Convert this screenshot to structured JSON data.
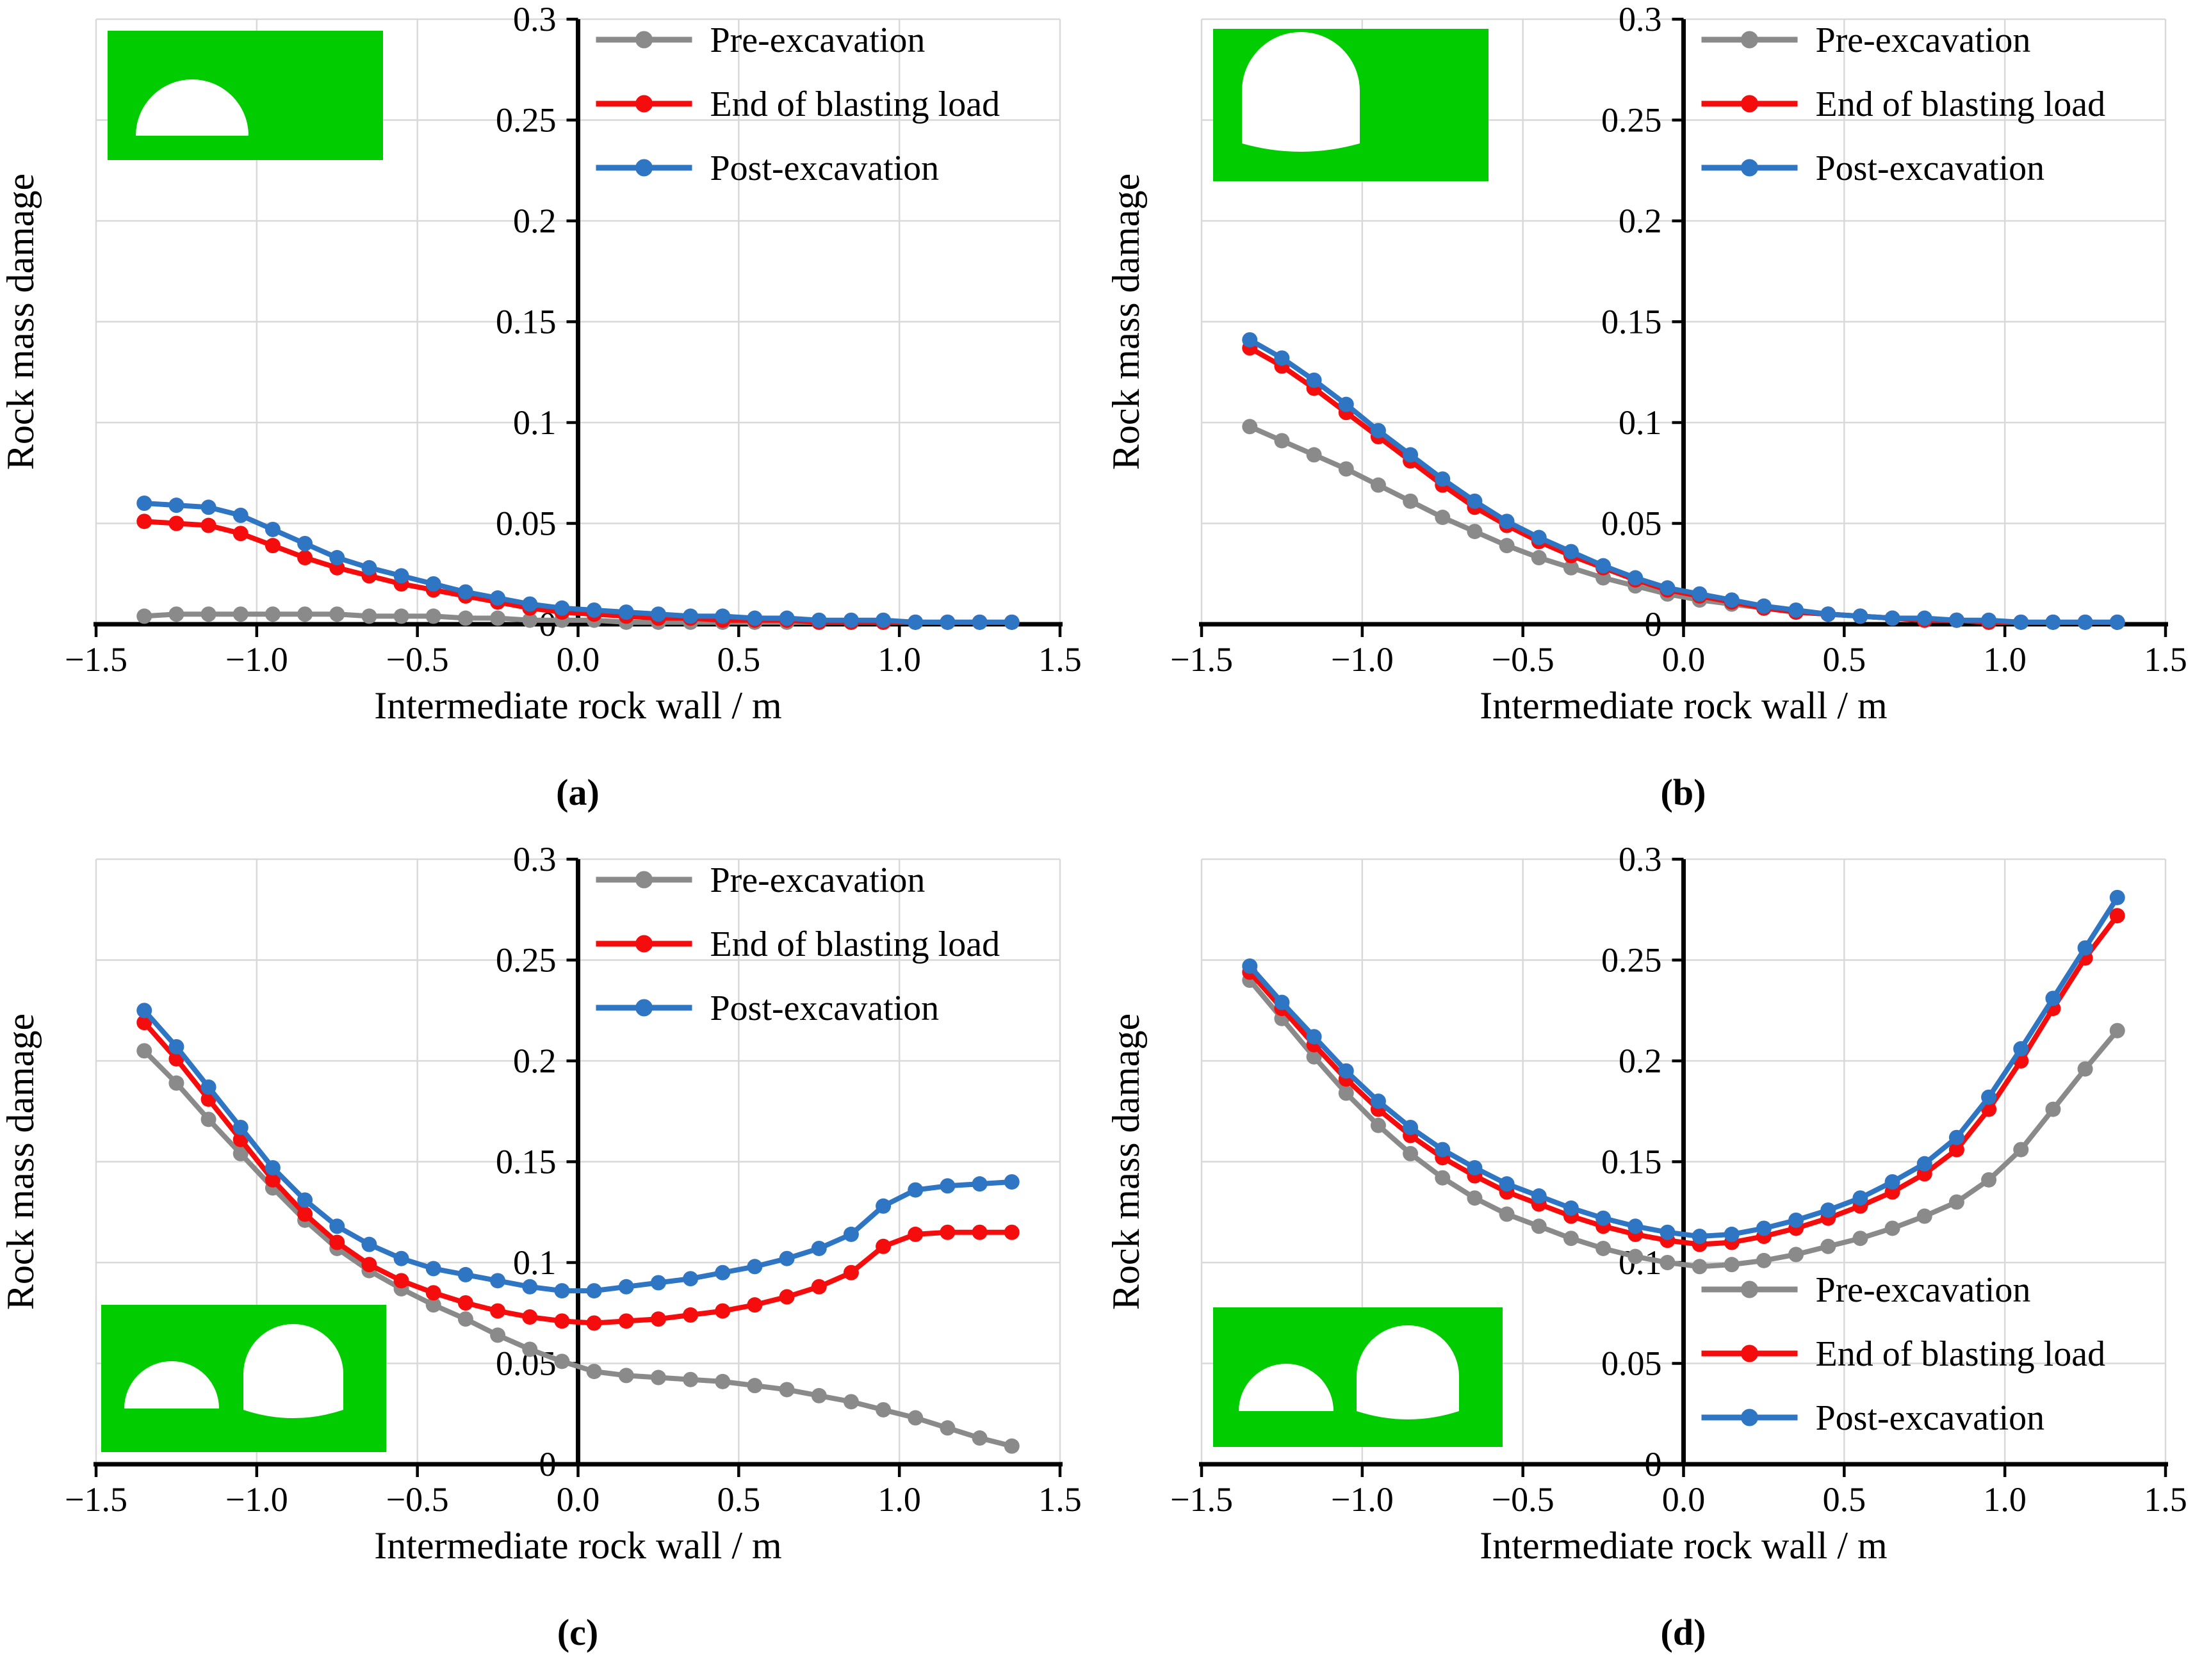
{
  "figure": {
    "colors": {
      "pre_excavation": "#8a8a8a",
      "end_of_blasting": "#f50d0d",
      "post_excavation": "#2e75c3",
      "inset_green": "#00cc00",
      "grid": "#d9d9d9",
      "axis": "#000000"
    },
    "series_labels": [
      "Pre-excavation",
      "End of blasting load",
      "Post-excavation"
    ]
  },
  "chart_data": [
    {
      "panel": "a",
      "panel_label": "(a)",
      "type": "line",
      "xlabel": "Intermediate rock wall / m",
      "ylabel": "Rock mass damage",
      "xlim": [
        -1.5,
        1.5
      ],
      "ylim": [
        0,
        0.3
      ],
      "xticks": [
        -1.5,
        -1.0,
        -0.5,
        0.0,
        0.5,
        1.0,
        1.5
      ],
      "yticks": [
        0,
        0.05,
        0.1,
        0.15,
        0.2,
        0.25,
        0.3
      ],
      "xtick_labels": [
        "−1.5",
        "−1.0",
        "−0.5",
        "0.0",
        "0.5",
        "1.0",
        "1.5"
      ],
      "ytick_labels": [
        "0",
        "0.05",
        "0.1",
        "0.15",
        "0.2",
        "0.25",
        "0.3"
      ],
      "grid": true,
      "legend_position": "top-inside-right-of-axis",
      "inset_icon": "single D-shaped tunnel cross-section on green background",
      "x": [
        -1.35,
        -1.25,
        -1.15,
        -1.05,
        -0.95,
        -0.85,
        -0.75,
        -0.65,
        -0.55,
        -0.45,
        -0.35,
        -0.25,
        -0.15,
        -0.05,
        0.05,
        0.15,
        0.25,
        0.35,
        0.45,
        0.55,
        0.65,
        0.75,
        0.85,
        0.95,
        1.05,
        1.15,
        1.25,
        1.35
      ],
      "series": [
        {
          "name": "Pre-excavation",
          "color": "#8a8a8a",
          "values": [
            0.004,
            0.005,
            0.005,
            0.005,
            0.005,
            0.005,
            0.005,
            0.004,
            0.004,
            0.004,
            0.003,
            0.003,
            0.002,
            0.002,
            0.002,
            0.001,
            0.001,
            0.001,
            0.001,
            0.001,
            0.001,
            0.001,
            0.001,
            0.001,
            0.001,
            0.001,
            0.001,
            0.001
          ]
        },
        {
          "name": "End of blasting load",
          "color": "#f50d0d",
          "values": [
            0.051,
            0.05,
            0.049,
            0.045,
            0.039,
            0.033,
            0.028,
            0.024,
            0.02,
            0.017,
            0.014,
            0.011,
            0.008,
            0.006,
            0.005,
            0.004,
            0.003,
            0.003,
            0.002,
            0.002,
            0.002,
            0.001,
            0.001,
            0.001,
            0.001,
            0.001,
            0.001,
            0.001
          ]
        },
        {
          "name": "Post-excavation",
          "color": "#2e75c3",
          "values": [
            0.06,
            0.059,
            0.058,
            0.054,
            0.047,
            0.04,
            0.033,
            0.028,
            0.024,
            0.02,
            0.016,
            0.013,
            0.01,
            0.008,
            0.007,
            0.006,
            0.005,
            0.004,
            0.004,
            0.003,
            0.003,
            0.002,
            0.002,
            0.002,
            0.001,
            0.001,
            0.001,
            0.001
          ]
        }
      ]
    },
    {
      "panel": "b",
      "panel_label": "(b)",
      "type": "line",
      "xlabel": "Intermediate rock wall / m",
      "ylabel": "Rock mass damage",
      "xlim": [
        -1.5,
        1.5
      ],
      "ylim": [
        0,
        0.3
      ],
      "xticks": [
        -1.5,
        -1.0,
        -0.5,
        0.0,
        0.5,
        1.0,
        1.5
      ],
      "yticks": [
        0,
        0.05,
        0.1,
        0.15,
        0.2,
        0.25,
        0.3
      ],
      "xtick_labels": [
        "−1.5",
        "−1.0",
        "−0.5",
        "0.0",
        "0.5",
        "1.0",
        "1.5"
      ],
      "ytick_labels": [
        "0",
        "0.05",
        "0.1",
        "0.15",
        "0.2",
        "0.25",
        "0.3"
      ],
      "grid": true,
      "legend_position": "top-inside-right-of-axis",
      "inset_icon": "single horseshoe tunnel cross-section on green background",
      "x": [
        -1.35,
        -1.25,
        -1.15,
        -1.05,
        -0.95,
        -0.85,
        -0.75,
        -0.65,
        -0.55,
        -0.45,
        -0.35,
        -0.25,
        -0.15,
        -0.05,
        0.05,
        0.15,
        0.25,
        0.35,
        0.45,
        0.55,
        0.65,
        0.75,
        0.85,
        0.95,
        1.05,
        1.15,
        1.25,
        1.35
      ],
      "series": [
        {
          "name": "Pre-excavation",
          "color": "#8a8a8a",
          "values": [
            0.098,
            0.091,
            0.084,
            0.077,
            0.069,
            0.061,
            0.053,
            0.046,
            0.039,
            0.033,
            0.028,
            0.023,
            0.019,
            0.015,
            0.012,
            0.01,
            0.008,
            0.006,
            0.005,
            0.004,
            0.003,
            0.002,
            0.002,
            0.001,
            0.001,
            0.001,
            0.001,
            0.001
          ]
        },
        {
          "name": "End of blasting load",
          "color": "#f50d0d",
          "values": [
            0.137,
            0.128,
            0.117,
            0.105,
            0.093,
            0.081,
            0.069,
            0.058,
            0.049,
            0.041,
            0.034,
            0.028,
            0.022,
            0.017,
            0.014,
            0.011,
            0.008,
            0.006,
            0.005,
            0.004,
            0.003,
            0.002,
            0.002,
            0.001,
            0.001,
            0.001,
            0.001,
            0.001
          ]
        },
        {
          "name": "Post-excavation",
          "color": "#2e75c3",
          "values": [
            0.141,
            0.132,
            0.121,
            0.109,
            0.096,
            0.084,
            0.072,
            0.061,
            0.051,
            0.043,
            0.036,
            0.029,
            0.023,
            0.018,
            0.015,
            0.012,
            0.009,
            0.007,
            0.005,
            0.004,
            0.003,
            0.003,
            0.002,
            0.002,
            0.001,
            0.001,
            0.001,
            0.001
          ]
        }
      ]
    },
    {
      "panel": "c",
      "panel_label": "(c)",
      "type": "line",
      "xlabel": "Intermediate rock wall / m",
      "ylabel": "Rock mass damage",
      "xlim": [
        -1.5,
        1.5
      ],
      "ylim": [
        0,
        0.3
      ],
      "xticks": [
        -1.5,
        -1.0,
        -0.5,
        0.0,
        0.5,
        1.0,
        1.5
      ],
      "yticks": [
        0,
        0.05,
        0.1,
        0.15,
        0.2,
        0.25,
        0.3
      ],
      "xtick_labels": [
        "−1.5",
        "−1.0",
        "−0.5",
        "0.0",
        "0.5",
        "1.0",
        "1.5"
      ],
      "ytick_labels": [
        "0",
        "0.05",
        "0.1",
        "0.15",
        "0.2",
        "0.25",
        "0.3"
      ],
      "grid": true,
      "legend_position": "top-inside-right-of-axis",
      "inset_icon": "twin tunnel cross-sections on green background",
      "x": [
        -1.35,
        -1.25,
        -1.15,
        -1.05,
        -0.95,
        -0.85,
        -0.75,
        -0.65,
        -0.55,
        -0.45,
        -0.35,
        -0.25,
        -0.15,
        -0.05,
        0.05,
        0.15,
        0.25,
        0.35,
        0.45,
        0.55,
        0.65,
        0.75,
        0.85,
        0.95,
        1.05,
        1.15,
        1.25,
        1.35
      ],
      "series": [
        {
          "name": "Pre-excavation",
          "color": "#8a8a8a",
          "values": [
            0.205,
            0.189,
            0.171,
            0.154,
            0.137,
            0.121,
            0.107,
            0.096,
            0.087,
            0.079,
            0.072,
            0.064,
            0.057,
            0.051,
            0.046,
            0.044,
            0.043,
            0.042,
            0.041,
            0.039,
            0.037,
            0.034,
            0.031,
            0.027,
            0.023,
            0.018,
            0.013,
            0.009
          ]
        },
        {
          "name": "End of blasting load",
          "color": "#f50d0d",
          "values": [
            0.219,
            0.201,
            0.181,
            0.161,
            0.141,
            0.124,
            0.11,
            0.099,
            0.091,
            0.085,
            0.08,
            0.076,
            0.073,
            0.071,
            0.07,
            0.071,
            0.072,
            0.074,
            0.076,
            0.079,
            0.083,
            0.088,
            0.095,
            0.108,
            0.114,
            0.115,
            0.115,
            0.115
          ]
        },
        {
          "name": "Post-excavation",
          "color": "#2e75c3",
          "values": [
            0.225,
            0.207,
            0.187,
            0.167,
            0.147,
            0.131,
            0.118,
            0.109,
            0.102,
            0.097,
            0.094,
            0.091,
            0.088,
            0.086,
            0.086,
            0.088,
            0.09,
            0.092,
            0.095,
            0.098,
            0.102,
            0.107,
            0.114,
            0.128,
            0.136,
            0.138,
            0.139,
            0.14
          ]
        }
      ]
    },
    {
      "panel": "d",
      "panel_label": "(d)",
      "type": "line",
      "xlabel": "Intermediate rock wall / m",
      "ylabel": "Rock mass damage",
      "xlim": [
        -1.5,
        1.5
      ],
      "ylim": [
        0,
        0.3
      ],
      "xticks": [
        -1.5,
        -1.0,
        -0.5,
        0.0,
        0.5,
        1.0,
        1.5
      ],
      "yticks": [
        0,
        0.05,
        0.1,
        0.15,
        0.2,
        0.25,
        0.3
      ],
      "xtick_labels": [
        "−1.5",
        "−1.0",
        "−0.5",
        "0.0",
        "0.5",
        "1.0",
        "1.5"
      ],
      "ytick_labels": [
        "0",
        "0.05",
        "0.1",
        "0.15",
        "0.2",
        "0.25",
        "0.3"
      ],
      "grid": true,
      "legend_position": "bottom-right-inside",
      "inset_icon": "twin tunnel cross-sections on green background",
      "x": [
        -1.35,
        -1.25,
        -1.15,
        -1.05,
        -0.95,
        -0.85,
        -0.75,
        -0.65,
        -0.55,
        -0.45,
        -0.35,
        -0.25,
        -0.15,
        -0.05,
        0.05,
        0.15,
        0.25,
        0.35,
        0.45,
        0.55,
        0.65,
        0.75,
        0.85,
        0.95,
        1.05,
        1.15,
        1.25,
        1.35
      ],
      "series": [
        {
          "name": "Pre-excavation",
          "color": "#8a8a8a",
          "values": [
            0.24,
            0.221,
            0.202,
            0.184,
            0.168,
            0.154,
            0.142,
            0.132,
            0.124,
            0.118,
            0.112,
            0.107,
            0.103,
            0.1,
            0.098,
            0.099,
            0.101,
            0.104,
            0.108,
            0.112,
            0.117,
            0.123,
            0.13,
            0.141,
            0.156,
            0.176,
            0.196,
            0.215
          ]
        },
        {
          "name": "End of blasting load",
          "color": "#f50d0d",
          "values": [
            0.244,
            0.226,
            0.208,
            0.191,
            0.176,
            0.163,
            0.152,
            0.143,
            0.135,
            0.129,
            0.123,
            0.118,
            0.114,
            0.111,
            0.109,
            0.11,
            0.113,
            0.117,
            0.122,
            0.128,
            0.135,
            0.144,
            0.156,
            0.176,
            0.2,
            0.226,
            0.251,
            0.272
          ]
        },
        {
          "name": "Post-excavation",
          "color": "#2e75c3",
          "values": [
            0.247,
            0.229,
            0.212,
            0.195,
            0.18,
            0.167,
            0.156,
            0.147,
            0.139,
            0.133,
            0.127,
            0.122,
            0.118,
            0.115,
            0.113,
            0.114,
            0.117,
            0.121,
            0.126,
            0.132,
            0.14,
            0.149,
            0.162,
            0.182,
            0.206,
            0.231,
            0.256,
            0.281
          ]
        }
      ]
    }
  ]
}
